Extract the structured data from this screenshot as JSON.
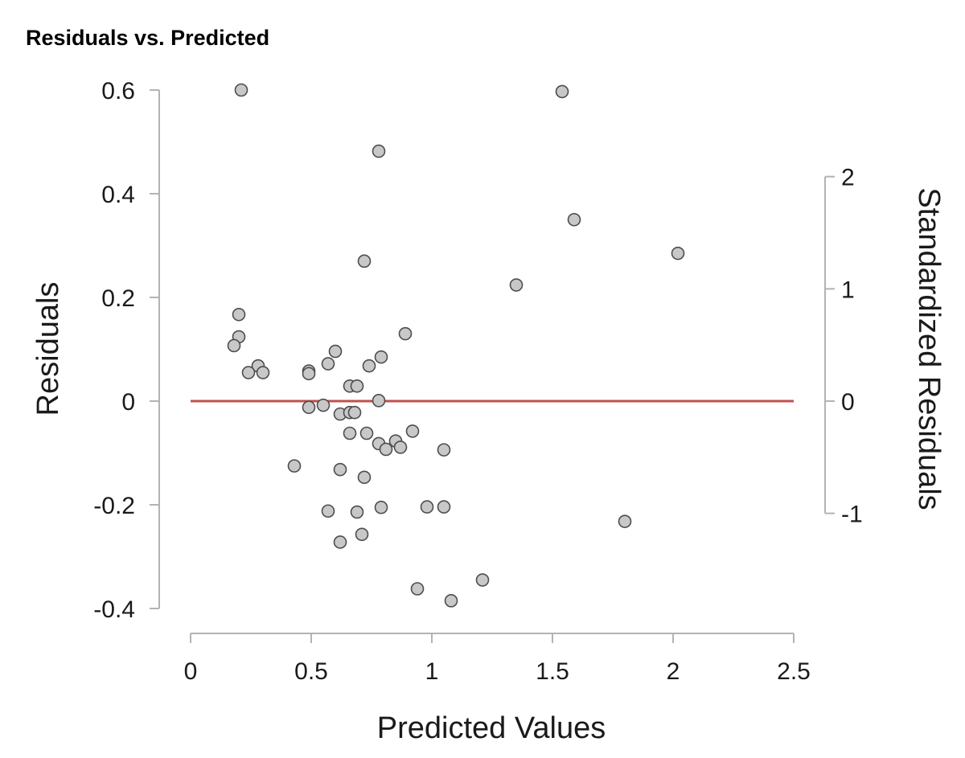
{
  "chart_data": {
    "type": "scatter",
    "title": "Residuals vs. Predicted",
    "xlabel": "Predicted Values",
    "ylabel": "Residuals",
    "y2label": "Standardized Residuals",
    "xlim": [
      0,
      2.5
    ],
    "ylim": [
      -0.4,
      0.6
    ],
    "y2lim": [
      -1,
      2
    ],
    "y2_per_residual": 0.2165,
    "x_ticks": [
      "0",
      "0.5",
      "1",
      "1.5",
      "2",
      "2.5"
    ],
    "x_tick_values": [
      0,
      0.5,
      1,
      1.5,
      2,
      2.5
    ],
    "y_ticks": [
      "0.6",
      "0.4",
      "0.2",
      "0",
      "-0.2",
      "-0.4"
    ],
    "y_tick_values": [
      0.6,
      0.4,
      0.2,
      0,
      -0.2,
      -0.4
    ],
    "y2_ticks": [
      "2",
      "1",
      "0",
      "-1"
    ],
    "y2_tick_values": [
      2,
      1,
      0,
      -1
    ],
    "reference_line": {
      "y": 0,
      "x_from": 0,
      "x_to": 2.5
    },
    "colors": {
      "point_fill": "#c8c8c8",
      "point_stroke": "#4d4d4d",
      "reference_line": "#c0504d",
      "axis": "#b3b3b3"
    },
    "points": [
      {
        "x": 0.21,
        "y": 0.6
      },
      {
        "x": 1.54,
        "y": 0.597
      },
      {
        "x": 0.78,
        "y": 0.482
      },
      {
        "x": 1.59,
        "y": 0.35
      },
      {
        "x": 2.02,
        "y": 0.285
      },
      {
        "x": 0.72,
        "y": 0.27
      },
      {
        "x": 1.35,
        "y": 0.224
      },
      {
        "x": 0.2,
        "y": 0.167
      },
      {
        "x": 0.89,
        "y": 0.13
      },
      {
        "x": 0.2,
        "y": 0.124
      },
      {
        "x": 0.18,
        "y": 0.107
      },
      {
        "x": 0.6,
        "y": 0.096
      },
      {
        "x": 0.79,
        "y": 0.085
      },
      {
        "x": 0.57,
        "y": 0.072
      },
      {
        "x": 0.74,
        "y": 0.068
      },
      {
        "x": 0.28,
        "y": 0.068
      },
      {
        "x": 0.24,
        "y": 0.055
      },
      {
        "x": 0.3,
        "y": 0.055
      },
      {
        "x": 0.49,
        "y": 0.058
      },
      {
        "x": 0.49,
        "y": 0.053
      },
      {
        "x": 0.66,
        "y": 0.029
      },
      {
        "x": 0.69,
        "y": 0.029
      },
      {
        "x": 0.78,
        "y": 0.001
      },
      {
        "x": 0.55,
        "y": -0.008
      },
      {
        "x": 0.49,
        "y": -0.012
      },
      {
        "x": 0.62,
        "y": -0.025
      },
      {
        "x": 0.66,
        "y": -0.022
      },
      {
        "x": 0.68,
        "y": -0.022
      },
      {
        "x": 0.66,
        "y": -0.062
      },
      {
        "x": 0.73,
        "y": -0.062
      },
      {
        "x": 0.92,
        "y": -0.058
      },
      {
        "x": 0.78,
        "y": -0.082
      },
      {
        "x": 0.85,
        "y": -0.077
      },
      {
        "x": 0.81,
        "y": -0.093
      },
      {
        "x": 0.87,
        "y": -0.089
      },
      {
        "x": 1.05,
        "y": -0.094
      },
      {
        "x": 0.43,
        "y": -0.125
      },
      {
        "x": 0.62,
        "y": -0.132
      },
      {
        "x": 0.72,
        "y": -0.147
      },
      {
        "x": 0.79,
        "y": -0.205
      },
      {
        "x": 0.98,
        "y": -0.204
      },
      {
        "x": 1.05,
        "y": -0.204
      },
      {
        "x": 0.57,
        "y": -0.212
      },
      {
        "x": 0.69,
        "y": -0.214
      },
      {
        "x": 1.8,
        "y": -0.232
      },
      {
        "x": 0.71,
        "y": -0.257
      },
      {
        "x": 0.62,
        "y": -0.272
      },
      {
        "x": 1.21,
        "y": -0.345
      },
      {
        "x": 0.94,
        "y": -0.362
      },
      {
        "x": 1.08,
        "y": -0.385
      }
    ]
  }
}
